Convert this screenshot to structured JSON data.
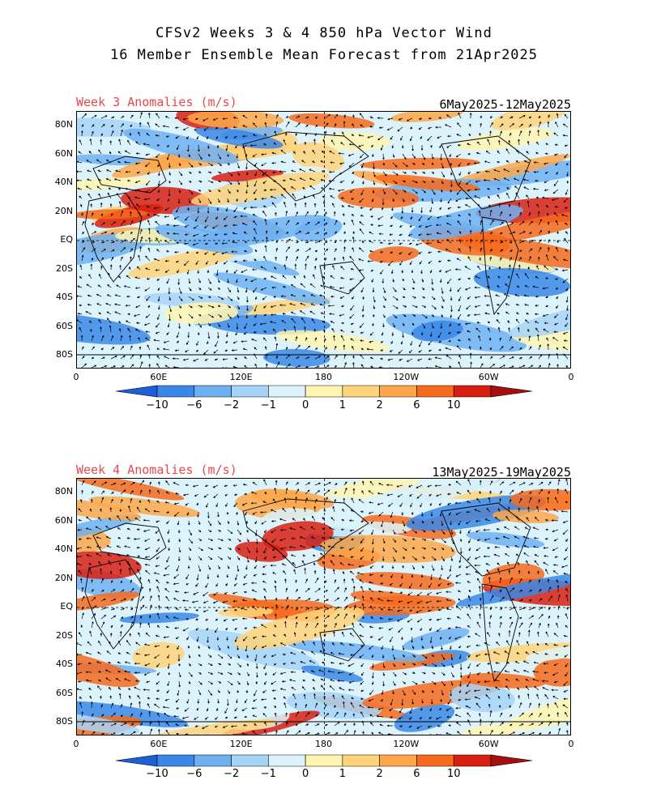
{
  "header": {
    "title_line1": "CFSv2 Weeks 3 & 4 850 hPa Vector Wind",
    "title_line2": "16 Member Ensemble Mean Forecast from 21Apr2025"
  },
  "panels": [
    {
      "label": "Week 3 Anomalies (m/s)",
      "date_range": "6May2025-12May2025"
    },
    {
      "label": "Week 4 Anomalies (m/s)",
      "date_range": "13May2025-19May2025"
    }
  ],
  "lat_labels": [
    "80N",
    "60N",
    "40N",
    "20N",
    "EQ",
    "20S",
    "40S",
    "60S",
    "80S"
  ],
  "lon_labels": [
    "0",
    "60E",
    "120E",
    "180",
    "120W",
    "60W",
    "0"
  ],
  "colorbar": {
    "labels": [
      "-10",
      "-6",
      "-2",
      "-1",
      "0",
      "1",
      "2",
      "6",
      "10"
    ],
    "colors": [
      "#1c5fd6",
      "#3a87e8",
      "#6fb0f2",
      "#a6d4f7",
      "#dcf3fb",
      "#fff5b0",
      "#ffd47a",
      "#fda74a",
      "#f76a1c",
      "#d81e10",
      "#a50f0f"
    ]
  },
  "colors": {
    "anomaly_label": "#e8474c"
  }
}
